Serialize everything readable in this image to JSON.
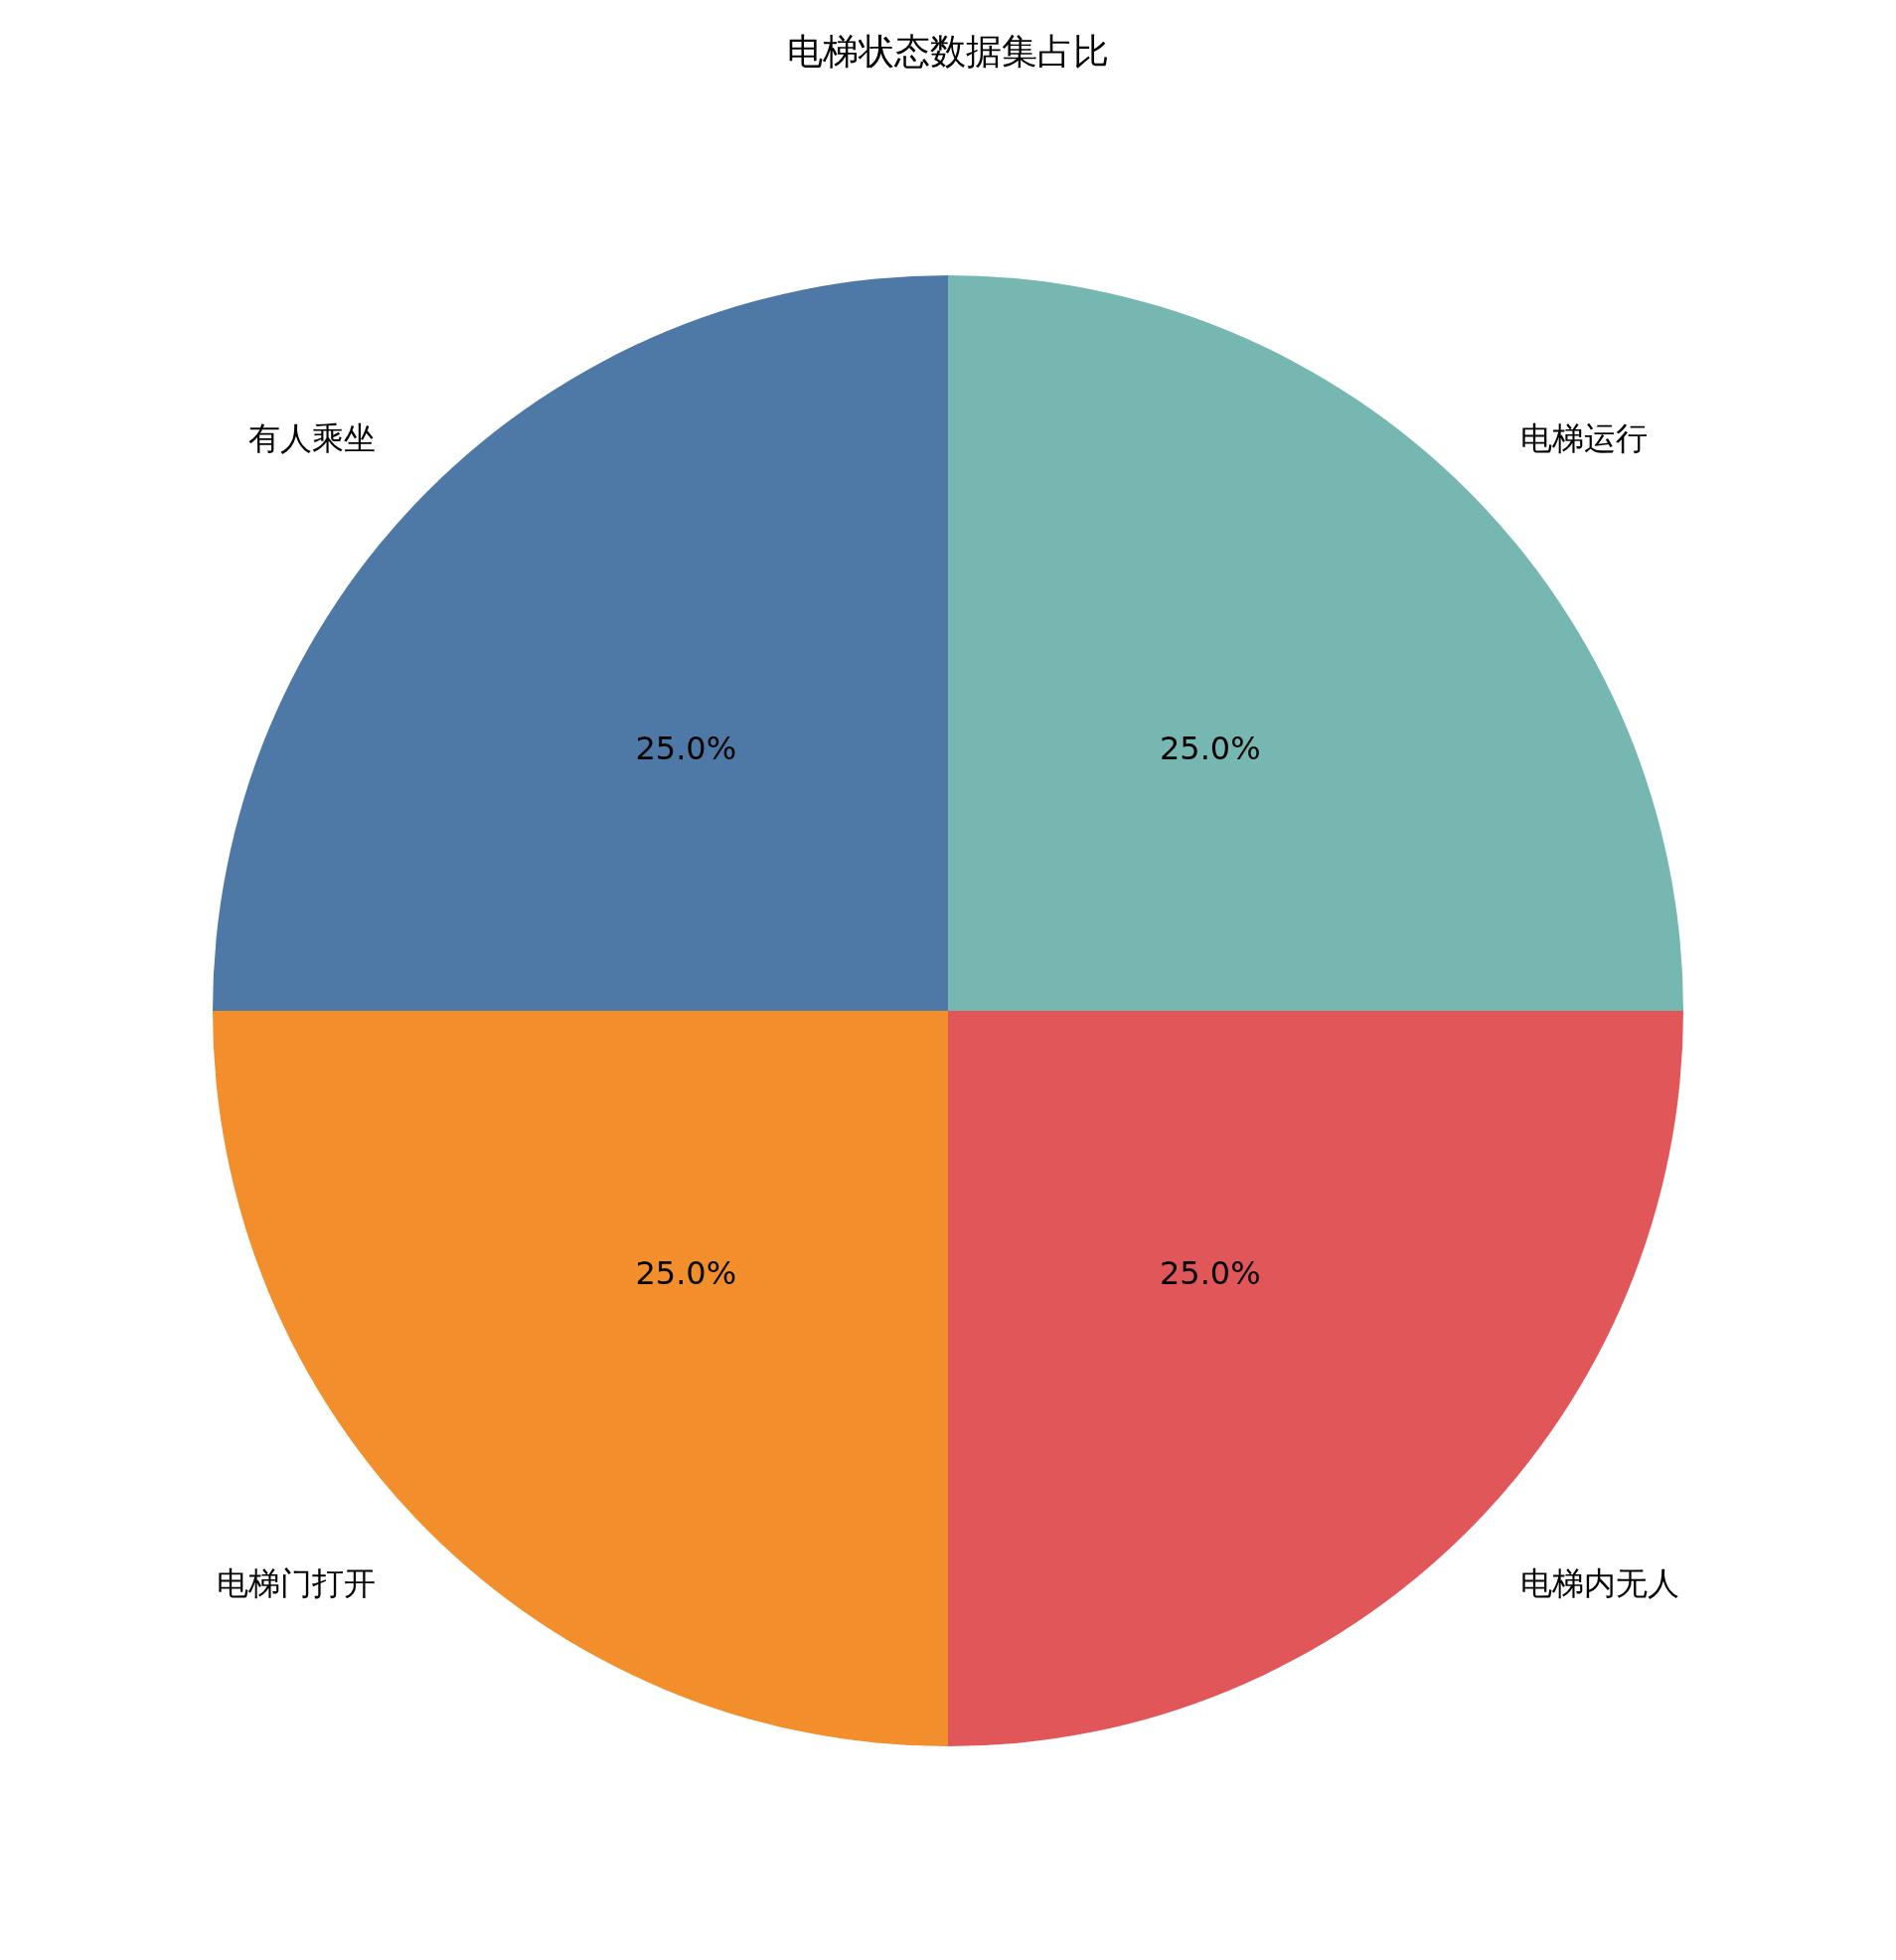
{
  "chart_data": {
    "type": "pie",
    "title": "电梯状态数据集占比",
    "categories": [
      "电梯运行",
      "有人乘坐",
      "电梯门打开",
      "电梯内无人"
    ],
    "values": [
      25,
      25,
      25,
      25
    ],
    "colors": [
      "#76b7b2",
      "#4e79a7",
      "#f28e2b",
      "#e15759"
    ],
    "value_labels": [
      "25.0%",
      "25.0%",
      "25.0%",
      "25.0%"
    ]
  }
}
